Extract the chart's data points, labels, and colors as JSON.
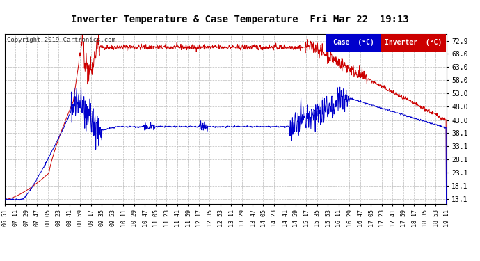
{
  "title": "Inverter Temperature & Case Temperature  Fri Mar 22  19:13",
  "copyright": "Copyright 2019 Cartronics.com",
  "bg_color": "#ffffff",
  "plot_bg_color": "#ffffff",
  "grid_color": "#bbbbbb",
  "line1_color": "#0000cc",
  "line2_color": "#cc0000",
  "legend_case_bg": "#0000cc",
  "legend_inv_bg": "#cc0000",
  "legend_case_label": "Case  (°C)",
  "legend_inv_label": "Inverter  (°C)",
  "yticks": [
    13.1,
    18.1,
    23.1,
    28.1,
    33.1,
    38.1,
    43.0,
    48.0,
    53.0,
    58.0,
    63.0,
    68.0,
    72.9
  ],
  "ylim": [
    11.5,
    75.5
  ],
  "xtick_labels": [
    "06:51",
    "07:11",
    "07:29",
    "07:47",
    "08:05",
    "08:23",
    "08:41",
    "08:59",
    "09:17",
    "09:35",
    "09:53",
    "10:11",
    "10:29",
    "10:47",
    "11:05",
    "11:23",
    "11:41",
    "11:59",
    "12:17",
    "12:35",
    "12:53",
    "13:11",
    "13:29",
    "13:47",
    "14:05",
    "14:23",
    "14:41",
    "14:59",
    "15:17",
    "15:35",
    "15:53",
    "16:11",
    "16:29",
    "16:47",
    "17:05",
    "17:23",
    "17:41",
    "17:59",
    "18:17",
    "18:35",
    "18:53",
    "19:11"
  ]
}
